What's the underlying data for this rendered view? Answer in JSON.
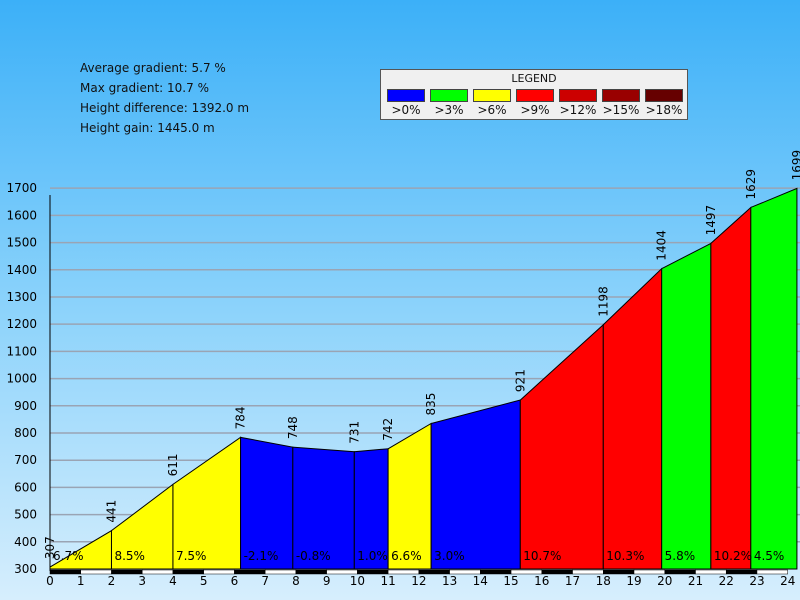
{
  "stats": {
    "average_gradient": "Average gradient: 5.7 %",
    "max_gradient": "Max gradient: 10.7 %",
    "height_difference": "Height difference: 1392.0 m",
    "height_gain": "Height gain: 1445.0 m"
  },
  "legend": {
    "title": "LEGEND",
    "items": [
      {
        "label": ">0%",
        "color": "#0000ff"
      },
      {
        "label": ">3%",
        "color": "#00ff00"
      },
      {
        "label": ">6%",
        "color": "#ffff00"
      },
      {
        "label": ">9%",
        "color": "#ff0000"
      },
      {
        "label": ">12%",
        "color": "#cc0000"
      },
      {
        "label": ">15%",
        "color": "#990000"
      },
      {
        "label": ">18%",
        "color": "#660000"
      }
    ]
  },
  "chart_data": {
    "type": "area",
    "xlim": [
      0,
      24.4
    ],
    "ylim": [
      300,
      1730
    ],
    "xticks": [
      0,
      1,
      2,
      3,
      4,
      5,
      6,
      7,
      8,
      9,
      10,
      11,
      12,
      13,
      14,
      15,
      16,
      17,
      18,
      19,
      20,
      21,
      22,
      23,
      24
    ],
    "yticks": [
      300,
      400,
      500,
      600,
      700,
      800,
      900,
      1000,
      1100,
      1200,
      1300,
      1400,
      1500,
      1600,
      1700
    ],
    "grid": true,
    "points": [
      {
        "x": 0,
        "y": 307,
        "label": "307"
      },
      {
        "x": 2,
        "y": 441,
        "label": "441"
      },
      {
        "x": 4,
        "y": 611,
        "label": "611"
      },
      {
        "x": 6.2,
        "y": 784,
        "label": "784"
      },
      {
        "x": 7.9,
        "y": 748,
        "label": "748"
      },
      {
        "x": 9.9,
        "y": 731,
        "label": "731"
      },
      {
        "x": 11,
        "y": 742,
        "label": "742"
      },
      {
        "x": 12.4,
        "y": 835,
        "label": "835"
      },
      {
        "x": 15.3,
        "y": 921,
        "label": "921"
      },
      {
        "x": 18,
        "y": 1198,
        "label": "1198"
      },
      {
        "x": 19.9,
        "y": 1404,
        "label": "1404"
      },
      {
        "x": 21.5,
        "y": 1497,
        "label": "1497"
      },
      {
        "x": 22.8,
        "y": 1629,
        "label": "1629"
      },
      {
        "x": 24.3,
        "y": 1699,
        "label": "1699"
      }
    ],
    "segments": [
      {
        "gradient": "6.7%",
        "color": "#ffff00"
      },
      {
        "gradient": "8.5%",
        "color": "#ffff00"
      },
      {
        "gradient": "7.5%",
        "color": "#ffff00"
      },
      {
        "gradient": "-2.1%",
        "color": "#0000ff"
      },
      {
        "gradient": "-0.8%",
        "color": "#0000ff"
      },
      {
        "gradient": "1.0%",
        "color": "#0000ff"
      },
      {
        "gradient": "6.6%",
        "color": "#ffff00"
      },
      {
        "gradient": "3.0%",
        "color": "#0000ff"
      },
      {
        "gradient": "10.7%",
        "color": "#ff0000"
      },
      {
        "gradient": "10.3%",
        "color": "#ff0000"
      },
      {
        "gradient": "5.8%",
        "color": "#00ff00"
      },
      {
        "gradient": "10.2%",
        "color": "#ff0000"
      },
      {
        "gradient": "4.5%",
        "color": "#00ff00"
      }
    ]
  }
}
